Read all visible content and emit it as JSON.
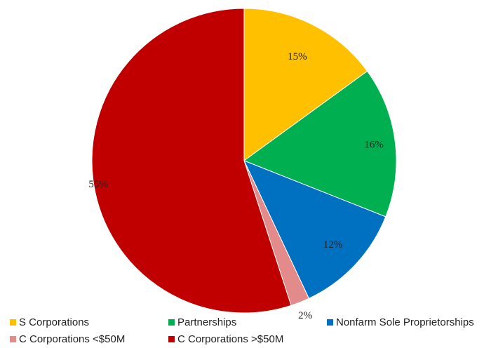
{
  "chart_data": {
    "type": "pie",
    "categories": [
      "S Corporations",
      "Partnerships",
      "Nonfarm Sole Proprietorships",
      "C Corporations <$50M",
      "C Corporations >$50M"
    ],
    "values": [
      15,
      16,
      12,
      2,
      55
    ],
    "labels": [
      "15%",
      "16%",
      "12%",
      "2%",
      "55%"
    ],
    "colors": [
      "#FFC000",
      "#00B050",
      "#0070C0",
      "#E38B8B",
      "#C00000"
    ],
    "start_angle_deg": 0,
    "direction": "clockwise",
    "legend_position": "bottom"
  }
}
